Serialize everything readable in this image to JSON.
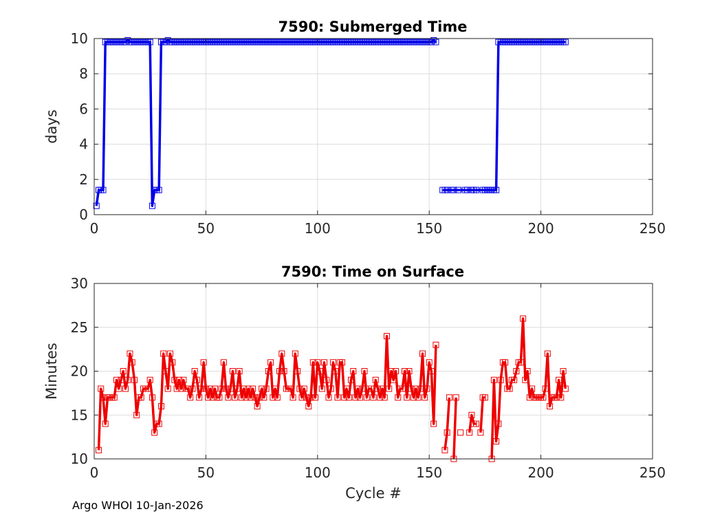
{
  "footer": "Argo WHOI 10-Jan-2026",
  "colors": {
    "blue": "#0000e6",
    "red": "#ee0000",
    "grid": "#dcdcdc"
  },
  "chart_data": [
    {
      "type": "line",
      "title": "7590: Submerged Time",
      "xlabel": "",
      "ylabel": "days",
      "xlim": [
        0,
        250
      ],
      "ylim": [
        0,
        10
      ],
      "xticks": [
        0,
        50,
        100,
        150,
        200,
        250
      ],
      "yticks": [
        0,
        2,
        4,
        6,
        8,
        10
      ],
      "grid": true,
      "marker": "square",
      "series": [
        {
          "color": "#0000e6",
          "segments": [
            {
              "x": [
                1,
                2,
                3,
                4,
                5,
                6,
                7,
                8,
                9,
                10,
                11,
                12,
                13,
                14,
                15,
                16,
                17,
                18,
                19,
                20,
                21,
                22,
                23,
                24,
                25,
                26,
                27,
                28,
                29,
                30,
                31,
                32,
                33,
                34,
                35,
                36,
                37,
                38,
                39,
                40,
                41,
                42,
                43,
                44,
                45,
                46,
                47,
                48,
                49,
                50,
                51,
                52,
                53,
                54,
                55,
                56,
                57,
                58,
                59,
                60,
                61,
                62,
                63,
                64,
                65,
                66,
                67,
                68,
                69,
                70,
                71,
                72,
                73,
                74,
                75,
                76,
                77,
                78,
                79,
                80,
                81,
                82,
                83,
                84,
                85,
                86,
                87,
                88,
                89,
                90,
                91,
                92,
                93,
                94,
                95,
                96,
                97,
                98,
                99,
                100,
                101,
                102,
                103,
                104,
                105,
                106,
                107,
                108,
                109,
                110,
                111,
                112,
                113,
                114,
                115,
                116,
                117,
                118,
                119,
                120,
                121,
                122,
                123,
                124,
                125,
                126,
                127,
                128,
                129,
                130,
                131,
                132,
                133,
                134,
                135,
                136,
                137,
                138,
                139,
                140,
                141,
                142,
                143,
                144,
                145,
                146,
                147,
                148,
                149,
                150,
                151,
                152,
                153
              ],
              "y": [
                0.5,
                1.4,
                1.4,
                1.4,
                9.8,
                9.8,
                9.8,
                9.8,
                9.8,
                9.8,
                9.8,
                9.8,
                9.8,
                9.8,
                9.9,
                9.8,
                9.8,
                9.8,
                9.8,
                9.8,
                9.8,
                9.8,
                9.8,
                9.8,
                9.8,
                0.5,
                1.4,
                1.4,
                1.4,
                9.8,
                9.8,
                9.8,
                9.9,
                9.8,
                9.8,
                9.8,
                9.8,
                9.8,
                9.8,
                9.8,
                9.8,
                9.8,
                9.8,
                9.8,
                9.8,
                9.8,
                9.8,
                9.8,
                9.8,
                9.8,
                9.8,
                9.8,
                9.8,
                9.8,
                9.8,
                9.8,
                9.8,
                9.8,
                9.8,
                9.8,
                9.8,
                9.8,
                9.8,
                9.8,
                9.8,
                9.8,
                9.8,
                9.8,
                9.8,
                9.8,
                9.8,
                9.8,
                9.8,
                9.8,
                9.8,
                9.8,
                9.8,
                9.8,
                9.8,
                9.8,
                9.8,
                9.8,
                9.8,
                9.8,
                9.8,
                9.8,
                9.8,
                9.8,
                9.8,
                9.8,
                9.8,
                9.8,
                9.8,
                9.8,
                9.8,
                9.8,
                9.8,
                9.8,
                9.8,
                9.8,
                9.8,
                9.8,
                9.8,
                9.8,
                9.8,
                9.8,
                9.8,
                9.8,
                9.8,
                9.8,
                9.8,
                9.8,
                9.8,
                9.8,
                9.8,
                9.8,
                9.8,
                9.8,
                9.8,
                9.8,
                9.8,
                9.8,
                9.8,
                9.8,
                9.8,
                9.8,
                9.8,
                9.8,
                9.8,
                9.8,
                9.8,
                9.8,
                9.8,
                9.8,
                9.8,
                9.8,
                9.8,
                9.8,
                9.8,
                9.8,
                9.8,
                9.8,
                9.8,
                9.8,
                9.8,
                9.8,
                9.8,
                9.8,
                9.8,
                9.8,
                9.8,
                9.9,
                9.8
              ]
            },
            {
              "x": [
                156,
                157,
                158,
                160,
                161,
                163,
                166,
                167,
                169,
                170,
                171,
                174,
                175,
                176,
                177,
                178,
                179,
                180,
                181,
                182,
                183,
                184,
                185,
                186,
                187,
                188,
                189,
                190,
                191,
                192,
                193,
                194,
                195,
                196,
                197,
                198,
                199,
                200,
                201,
                202,
                203,
                204,
                205,
                206,
                207,
                208,
                209,
                210,
                211
              ],
              "y": [
                1.4,
                1.4,
                1.4,
                1.4,
                1.4,
                1.4,
                1.4,
                1.4,
                1.4,
                1.4,
                1.4,
                1.4,
                1.4,
                1.4,
                1.4,
                1.4,
                1.4,
                1.4,
                9.8,
                9.8,
                9.8,
                9.8,
                9.8,
                9.8,
                9.8,
                9.8,
                9.8,
                9.8,
                9.8,
                9.8,
                9.8,
                9.8,
                9.8,
                9.8,
                9.8,
                9.8,
                9.8,
                9.8,
                9.8,
                9.8,
                9.8,
                9.8,
                9.8,
                9.8,
                9.8,
                9.8,
                9.8,
                9.8,
                9.8
              ]
            }
          ]
        }
      ]
    },
    {
      "type": "line",
      "title": "7590: Time on Surface",
      "xlabel": "Cycle #",
      "ylabel": "Minutes",
      "xlim": [
        0,
        250
      ],
      "ylim": [
        10,
        30
      ],
      "xticks": [
        0,
        50,
        100,
        150,
        200,
        250
      ],
      "yticks": [
        10,
        15,
        20,
        25,
        30
      ],
      "grid": true,
      "marker": "square",
      "series": [
        {
          "color": "#ee0000",
          "segments": [
            {
              "x": [
                2,
                3,
                4,
                5,
                6,
                7,
                8,
                9,
                10,
                11,
                12,
                13,
                14,
                15,
                16,
                17,
                18,
                19,
                20,
                21,
                22,
                23,
                24,
                25,
                26,
                27,
                28,
                29,
                30,
                31,
                32,
                33,
                34,
                35,
                36,
                37,
                38,
                39,
                40,
                41,
                42,
                43,
                44,
                45,
                46,
                47,
                48,
                49,
                50,
                51,
                52,
                53,
                54,
                55,
                56,
                57,
                58,
                59,
                60,
                61,
                62,
                63,
                64,
                65,
                66,
                67,
                68,
                69,
                70,
                71,
                72,
                73,
                74,
                75,
                76,
                77,
                78,
                79,
                80,
                81,
                82,
                83,
                84,
                85,
                86,
                87,
                88,
                89,
                90,
                91,
                92,
                93,
                94,
                95,
                96,
                97,
                98,
                99,
                100,
                101,
                102,
                103,
                104,
                105,
                106,
                107,
                108,
                109,
                110,
                111,
                112,
                113,
                114,
                115,
                116,
                117,
                118,
                119,
                120,
                121,
                122,
                123,
                124,
                125,
                126,
                127,
                128,
                129,
                130,
                131,
                132,
                133,
                134,
                135,
                136,
                137,
                138,
                139,
                140,
                141,
                142,
                143,
                144,
                145,
                146,
                147,
                148,
                149,
                150,
                151,
                152,
                153
              ],
              "y": [
                11,
                18,
                17,
                14,
                17,
                17,
                17,
                17,
                19,
                18,
                19,
                20,
                18,
                19,
                22,
                21,
                19,
                15,
                17,
                17,
                18,
                18,
                18,
                19,
                17,
                13,
                14,
                14,
                16,
                22,
                20,
                18,
                22,
                21,
                19,
                18,
                19,
                18,
                19,
                18,
                18,
                17,
                18,
                20,
                19,
                17,
                18,
                21,
                18,
                17,
                18,
                17,
                18,
                17,
                17,
                18,
                21,
                18,
                17,
                18,
                20,
                17,
                18,
                20,
                17,
                18,
                17,
                18,
                17,
                18,
                17,
                16,
                17,
                18,
                17,
                18,
                20,
                21,
                17,
                18,
                17,
                20,
                22,
                20,
                18,
                18,
                18,
                17,
                22,
                20,
                18,
                17,
                18,
                17,
                16,
                17,
                21,
                17,
                21,
                20,
                18,
                21,
                19,
                17,
                18,
                21,
                20,
                17,
                21,
                21,
                17,
                18,
                17,
                19,
                20,
                17,
                18,
                17,
                18,
                20,
                17,
                18,
                18,
                17,
                19,
                18,
                17,
                18,
                17,
                24,
                18,
                20,
                19,
                20,
                17,
                18,
                18,
                20,
                17,
                20,
                18,
                17,
                18,
                17,
                18,
                22,
                17,
                18,
                21,
                20,
                14,
                23
              ]
            },
            {
              "x": [
                157,
                158,
                159
              ],
              "y": [
                11,
                13,
                17
              ]
            },
            {
              "x": [
                161,
                162
              ],
              "y": [
                10,
                17
              ]
            },
            {
              "x": [
                164
              ],
              "y": [
                13
              ]
            },
            {
              "x": [
                168,
                169,
                170,
                171
              ],
              "y": [
                13,
                15,
                14,
                14
              ]
            },
            {
              "x": [
                173,
                174,
                175
              ],
              "y": [
                13,
                17,
                17
              ]
            },
            {
              "x": [
                178,
                179,
                180,
                181,
                182,
                183,
                184,
                185,
                186,
                187,
                188,
                189,
                190,
                191,
                192,
                193,
                194,
                195,
                196,
                197,
                198,
                199,
                200,
                201,
                202,
                203,
                204,
                205,
                206,
                207,
                208,
                209,
                210,
                211
              ],
              "y": [
                10,
                19,
                12,
                14,
                19,
                21,
                21,
                18,
                18,
                19,
                19,
                20,
                21,
                21,
                26,
                19,
                20,
                17,
                18,
                17,
                17,
                17,
                17,
                17,
                18,
                22,
                16,
                17,
                17,
                17,
                19,
                17,
                20,
                18
              ]
            }
          ]
        }
      ]
    }
  ]
}
